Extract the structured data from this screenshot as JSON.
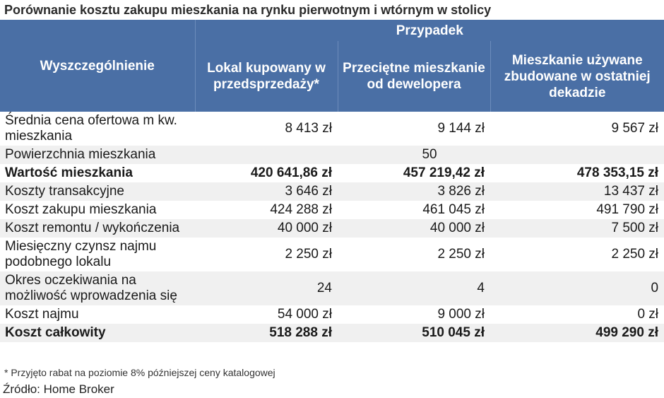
{
  "title": "Porównanie kosztu zakupu mieszkania na rynku pierwotnym i wtórnym w stolicy",
  "table": {
    "group_header": "Przypadek",
    "desc_header": "Wyszczególnienie",
    "columns": [
      "Lokal kupowany w przedsprzedaży*",
      "Przeciętne mieszkanie od dewelopera",
      "Mieszkanie używane zbudowane w ostatniej dekadzie"
    ],
    "rows": [
      {
        "label": "Średnia cena ofertowa m kw. mieszkania",
        "values": [
          "8 413 zł",
          "9 144 zł",
          "9 567 zł"
        ],
        "bold": false
      },
      {
        "label": "Powierzchnia mieszkania",
        "merged_value": "50",
        "bold": false
      },
      {
        "label": "Wartość mieszkania",
        "values": [
          "420 641,86 zł",
          "457 219,42 zł",
          "478 353,15 zł"
        ],
        "bold": true
      },
      {
        "label": "Koszty transakcyjne",
        "values": [
          "3 646 zł",
          "3 826 zł",
          "13 437 zł"
        ],
        "bold": false
      },
      {
        "label": "Koszt zakupu mieszkania",
        "values": [
          "424 288 zł",
          "461 045 zł",
          "491 790 zł"
        ],
        "bold": false
      },
      {
        "label": "Koszt remontu / wykończenia",
        "values": [
          "40 000 zł",
          "40 000 zł",
          "7 500 zł"
        ],
        "bold": false
      },
      {
        "label": "Miesięczny czynsz najmu podobnego lokalu",
        "values": [
          "2 250 zł",
          "2 250 zł",
          "2 250 zł"
        ],
        "bold": false
      },
      {
        "label": "Okres oczekiwania na możliwość wprowadzenia się",
        "values": [
          "24",
          "4",
          "0"
        ],
        "bold": false
      },
      {
        "label": "Koszt najmu",
        "values": [
          "54 000 zł",
          "9 000 zł",
          "0 zł"
        ],
        "bold": false
      },
      {
        "label": "Koszt całkowity",
        "values": [
          "518 288 zł",
          "510 045 zł",
          "499 290 zł"
        ],
        "bold": true
      }
    ]
  },
  "footnote": "* Przyjęto rabat na poziomie 8% późniejszej ceny katalogowej",
  "source": "Źródło: Home Broker",
  "colors": {
    "header_bg": "#4a6fa5",
    "stripe_bg": "#f0f0f0"
  }
}
